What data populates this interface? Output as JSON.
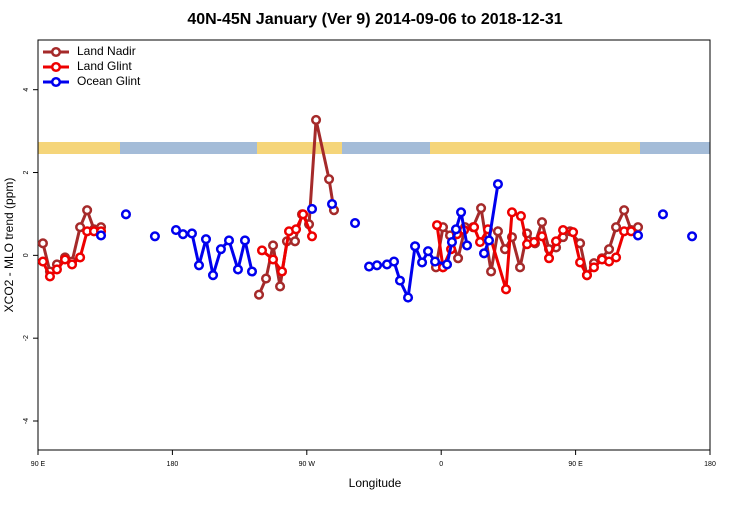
{
  "chart_data": {
    "type": "line",
    "title": "40N-45N January (Ver 9)   2014-09-06 to 2018-12-31",
    "x_label": "Longitude",
    "y_label": "XCO2 - MLO trend (ppm)",
    "xlim": [
      90,
      540
    ],
    "xticks": [
      {
        "value": 90,
        "label": "90 E"
      },
      180,
      {
        "value": 270,
        "label": "90 W"
      },
      {
        "value": 360,
        "label": "0"
      },
      {
        "value": 450,
        "label": "90 E"
      },
      {
        "value": 540,
        "label": "180"
      }
    ],
    "ylim": [
      -4.7,
      5.2
    ],
    "yticks": [
      -4,
      -2,
      0,
      2,
      4
    ],
    "legend_position": "top-left",
    "series": [
      {
        "name": "Land Nadir",
        "color": "#a52a2a",
        "x": [
          93.3,
          98,
          102.7,
          108.1,
          112.8,
          118.2,
          122.9,
          127.5,
          132.2,
          null,
          238,
          242.7,
          247.4,
          252.1,
          256.7,
          262.1,
          266.8,
          271.5,
          276.2,
          284.9,
          288.2,
          null,
          356.5,
          361.2,
          365.9,
          371.3,
          376,
          381.3,
          386.7,
          393.4,
          398,
          402.7,
          407.4,
          412.8,
          417.5,
          422.8,
          427.5,
          432.2,
          436.9,
          441.6,
          446.3,
          453,
          457.6,
          462.3,
          467.7,
          472.4,
          477.1,
          482.5,
          487.2,
          491.8
        ],
        "values": [
          0.29,
          -0.39,
          -0.22,
          -0.05,
          -0.15,
          0.68,
          1.09,
          0.63,
          0.68,
          null,
          -0.95,
          -0.56,
          0.24,
          -0.75,
          0.34,
          0.34,
          0.99,
          0.75,
          3.27,
          1.84,
          1.09,
          null,
          -0.29,
          0.68,
          0.48,
          -0.07,
          0.68,
          0.68,
          1.14,
          -0.39,
          0.58,
          0.15,
          0.44,
          -0.29,
          0.53,
          0.29,
          0.8,
          0.15,
          0.19,
          0.44,
          0.58,
          0.29,
          -0.48,
          -0.19,
          -0.07,
          0.15,
          0.68,
          1.09,
          0.61,
          0.68
        ]
      },
      {
        "name": "Land Glint",
        "color": "#ee0000",
        "x": [
          93.3,
          98,
          102.7,
          108.1,
          112.8,
          118.2,
          122.9,
          127.5,
          132.2,
          null,
          240,
          247.4,
          253.4,
          258.1,
          262.8,
          267.5,
          273.5,
          null,
          357.2,
          361.2,
          366.6,
          370.6,
          375.3,
          382,
          386,
          391.3,
          403.4,
          407.4,
          413.4,
          417.5,
          422.2,
          427.5,
          432.2,
          436.9,
          441.6,
          448.3,
          453,
          457.6,
          462.3,
          467.7,
          472.4,
          477.1,
          482.5,
          487.2
        ],
        "values": [
          -0.15,
          -0.51,
          -0.34,
          -0.1,
          -0.22,
          -0.05,
          0.58,
          0.58,
          0.58,
          null,
          0.12,
          -0.1,
          -0.39,
          0.58,
          0.63,
          0.99,
          0.46,
          null,
          0.73,
          -0.29,
          0.15,
          0.51,
          0.61,
          0.68,
          0.32,
          0.63,
          -0.82,
          1.04,
          0.95,
          0.27,
          0.32,
          0.46,
          -0.07,
          0.34,
          0.61,
          0.56,
          -0.17,
          -0.48,
          -0.29,
          -0.1,
          -0.15,
          -0.05,
          0.58,
          0.58
        ]
      },
      {
        "name": "Ocean Glint",
        "color": "#0000ee",
        "x": [
          132.2,
          null,
          148.9,
          null,
          168.3,
          null,
          182.4,
          187.1,
          193.1,
          197.8,
          202.5,
          207.2,
          212.5,
          217.9,
          223.9,
          228.6,
          233.3,
          null,
          273.5,
          null,
          286.9,
          null,
          302.3,
          null,
          311.7,
          317,
          323.7,
          328.4,
          332.4,
          337.8,
          342.5,
          347.2,
          351.2,
          355.9,
          363.9,
          367.2,
          369.9,
          373.3,
          377.3,
          null,
          388.7,
          392,
          398,
          null,
          491.8,
          null,
          508.5,
          null,
          528
        ],
        "values": [
          0.48,
          null,
          0.99,
          null,
          0.46,
          null,
          0.61,
          0.51,
          0.53,
          -0.24,
          0.39,
          -0.48,
          0.15,
          0.36,
          -0.34,
          0.36,
          -0.39,
          null,
          1.12,
          null,
          1.24,
          null,
          0.78,
          null,
          -0.27,
          -0.24,
          -0.22,
          -0.15,
          -0.61,
          -1.02,
          0.22,
          -0.17,
          0.1,
          -0.15,
          -0.22,
          0.32,
          0.63,
          1.04,
          0.24,
          null,
          0.05,
          0.36,
          1.72,
          null,
          0.48,
          null,
          0.99,
          null,
          0.46
        ]
      }
    ]
  }
}
